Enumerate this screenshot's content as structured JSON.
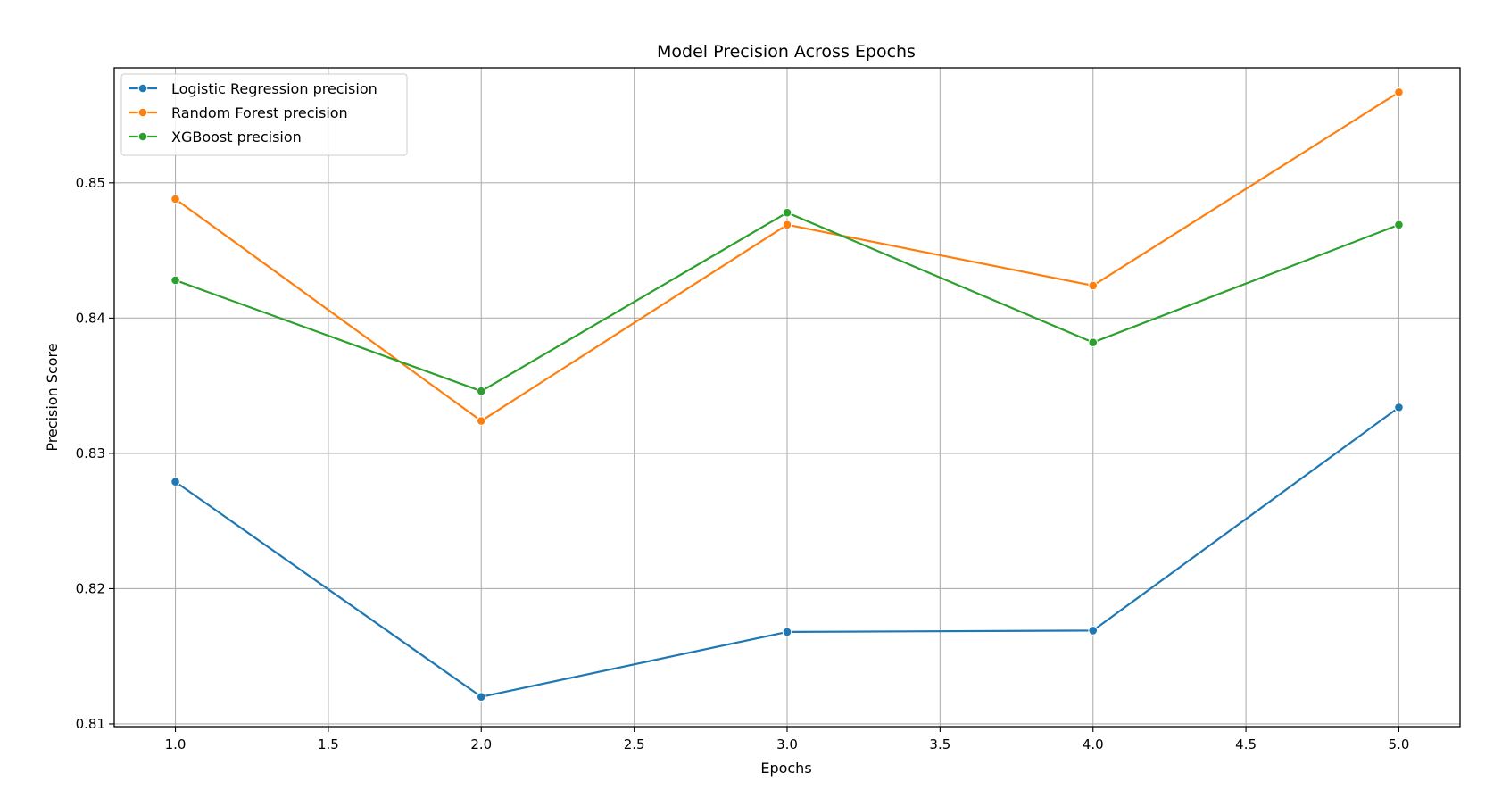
{
  "chart_data": {
    "type": "line",
    "title": "Model Precision Across Epochs",
    "xlabel": "Epochs",
    "ylabel": "Precision Score",
    "x": [
      1.0,
      2.0,
      3.0,
      4.0,
      5.0
    ],
    "xlim": [
      0.8,
      5.2
    ],
    "ylim": [
      0.8098,
      0.8585
    ],
    "xticks": [
      1.0,
      1.5,
      2.0,
      2.5,
      3.0,
      3.5,
      4.0,
      4.5,
      5.0
    ],
    "xtick_labels": [
      "1.0",
      "1.5",
      "2.0",
      "2.5",
      "3.0",
      "3.5",
      "4.0",
      "4.5",
      "5.0"
    ],
    "yticks": [
      0.81,
      0.82,
      0.83,
      0.84,
      0.85
    ],
    "ytick_labels": [
      "0.81",
      "0.82",
      "0.83",
      "0.84",
      "0.85"
    ],
    "grid": true,
    "legend_position": "top-left",
    "series": [
      {
        "name": "Logistic Regression precision",
        "color": "#1f77b4",
        "values": [
          0.8279,
          0.812,
          0.8168,
          0.8169,
          0.8334
        ]
      },
      {
        "name": "Random Forest precision",
        "color": "#ff7f0e",
        "values": [
          0.8488,
          0.8324,
          0.8469,
          0.8424,
          0.8567
        ]
      },
      {
        "name": "XGBoost precision",
        "color": "#2ca02c",
        "values": [
          0.8428,
          0.8346,
          0.8478,
          0.8382,
          0.8469
        ]
      }
    ]
  }
}
